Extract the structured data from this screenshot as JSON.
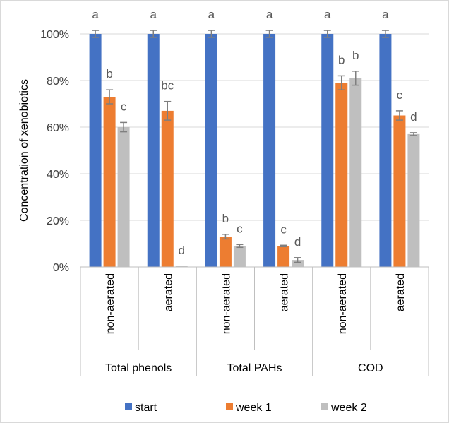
{
  "chart_data": {
    "type": "bar",
    "title": "",
    "xlabel": "",
    "ylabel": "Concentration of xenobiotics",
    "ylim": [
      0,
      100
    ],
    "yticks": [
      "0%",
      "20%",
      "40%",
      "60%",
      "80%",
      "100%"
    ],
    "grid": true,
    "legend_position": "bottom",
    "groups": [
      {
        "label": "Total phenols",
        "categories": [
          "non-aerated",
          "aerated"
        ]
      },
      {
        "label": "Total PAHs",
        "categories": [
          "non-aerated",
          "aerated"
        ]
      },
      {
        "label": "COD",
        "categories": [
          "non-aerated",
          "aerated"
        ]
      }
    ],
    "categories": [
      "non-aerated",
      "aerated",
      "non-aerated",
      "aerated",
      "non-aerated",
      "aerated"
    ],
    "series": [
      {
        "name": "start",
        "color": "#4472C4",
        "values": [
          100,
          100,
          100,
          100,
          100,
          100
        ],
        "errors": [
          1.5,
          1.5,
          1.5,
          1.5,
          1.5,
          1.5
        ],
        "labels": [
          "a",
          "a",
          "a",
          "a",
          "a",
          "a"
        ]
      },
      {
        "name": "week 1",
        "color": "#ED7D31",
        "values": [
          73,
          67,
          13,
          9,
          79,
          65
        ],
        "errors": [
          3,
          4,
          1,
          0.3,
          3,
          2
        ],
        "labels": [
          "b",
          "bc",
          "b",
          "c",
          "b",
          "c"
        ]
      },
      {
        "name": "week 2",
        "color": "#BFBFBF",
        "values": [
          60,
          0.3,
          9,
          3,
          81,
          57
        ],
        "errors": [
          2,
          0,
          0.6,
          1,
          3,
          0.6
        ],
        "labels": [
          "c",
          "d",
          "c",
          "d",
          "b",
          "d"
        ]
      }
    ]
  }
}
